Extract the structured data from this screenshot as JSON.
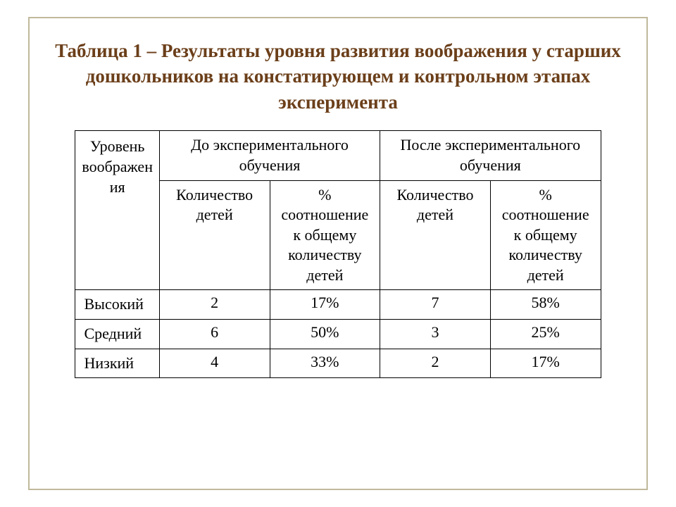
{
  "title_color": "#6b3f1a",
  "title_fontsize": 27,
  "cell_fontsize": 22,
  "title": "Таблица 1 – Результаты уровня развития воображения у старших дошкольников на констатирующем и контрольном этапах эксперимента",
  "table": {
    "columns": {
      "level_header": "Уровень воображен ия",
      "before_header": "До экспериментального обучения",
      "after_header": "После экспериментального обучения",
      "sub_count": "Количество детей",
      "sub_percent": "% соотношение к общему количеству детей"
    },
    "rows": [
      {
        "label": "Высокий",
        "before_count": "2",
        "before_pct": "17%",
        "after_count": "7",
        "after_pct": "58%"
      },
      {
        "label": "Средний",
        "before_count": "6",
        "before_pct": "50%",
        "after_count": "3",
        "after_pct": "25%"
      },
      {
        "label": "Низкий",
        "before_count": "4",
        "before_pct": "33%",
        "after_count": "2",
        "after_pct": "17%"
      }
    ]
  }
}
